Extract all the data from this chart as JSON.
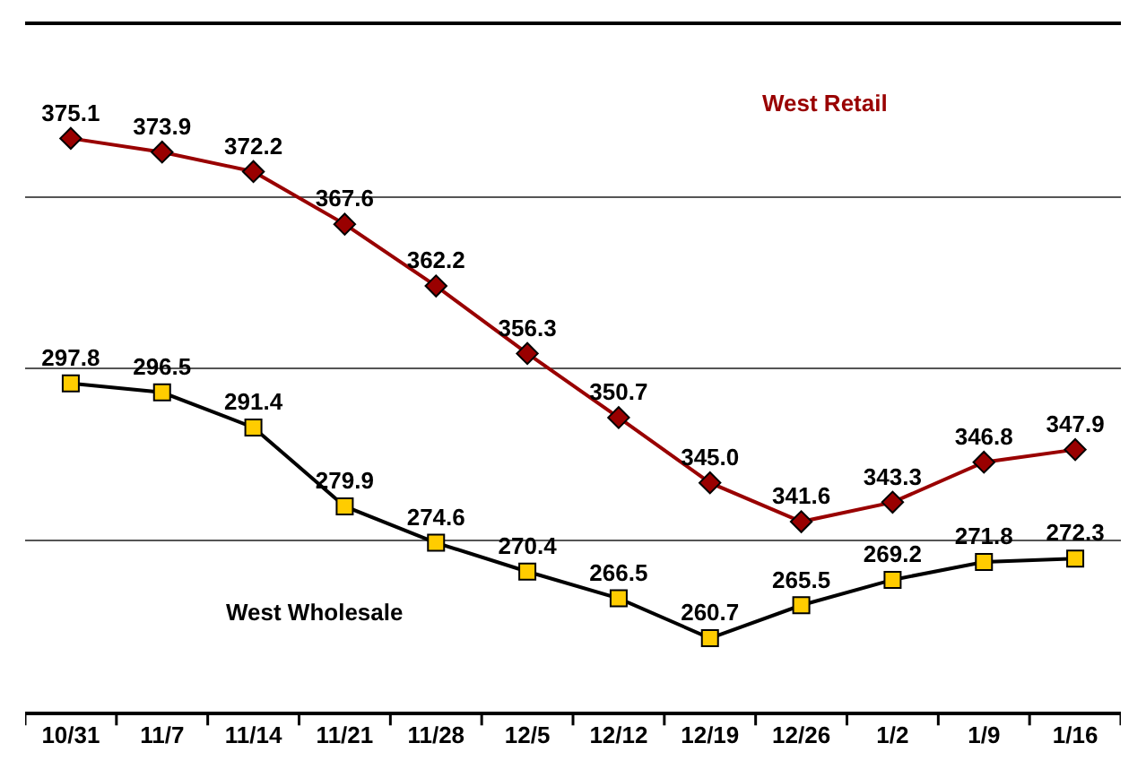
{
  "chart_data": {
    "type": "line",
    "categories": [
      "10/31",
      "11/7",
      "11/14",
      "11/21",
      "11/28",
      "12/5",
      "12/12",
      "12/19",
      "12/26",
      "1/2",
      "1/9",
      "1/16"
    ],
    "series": [
      {
        "name": "West Retail",
        "color": "#990000",
        "marker": "diamond",
        "values": [
          375.1,
          373.9,
          372.2,
          367.6,
          362.2,
          356.3,
          350.7,
          345.0,
          341.6,
          343.3,
          346.8,
          347.9
        ],
        "value_labels": [
          "375.1",
          "373.9",
          "372.2",
          "367.6",
          "362.2",
          "356.3",
          "350.7",
          "345.0",
          "341.6",
          "343.3",
          "346.8",
          "347.9"
        ]
      },
      {
        "name": "West Wholesale",
        "color": "#000000",
        "marker": "square",
        "colors": [
          "#ffcc00",
          "#ffcc00",
          "#ffcc00",
          "#ffcc00",
          "#ffcc00",
          "#ffcc00",
          "#ffcc00",
          "#ffcc00",
          "#ffcc00",
          "#ffcc00",
          "#ffcc00",
          "#ffcc00"
        ],
        "axis": "y2",
        "values": [
          297.8,
          296.5,
          291.4,
          279.9,
          274.6,
          270.4,
          266.5,
          260.7,
          265.5,
          269.2,
          271.8,
          272.3
        ],
        "value_labels": [
          "297.8",
          "296.5",
          "291.4",
          "279.9",
          "274.6",
          "270.4",
          "266.5",
          "260.7",
          "265.5",
          "269.2",
          "271.8",
          "272.3"
        ]
      }
    ],
    "ylim": [
      325,
      385
    ],
    "yticks": [
      {
        "value": 325,
        "label": null
      },
      {
        "value": 340,
        "label": null
      },
      {
        "value": 355,
        "label": null
      },
      {
        "value": 370,
        "label": null
      },
      {
        "value": 385,
        "label": null
      }
    ],
    "y2lim": [
      250,
      350
    ],
    "grid": "y",
    "legend": false,
    "tick_labels": "x",
    "line_style": "solid"
  }
}
